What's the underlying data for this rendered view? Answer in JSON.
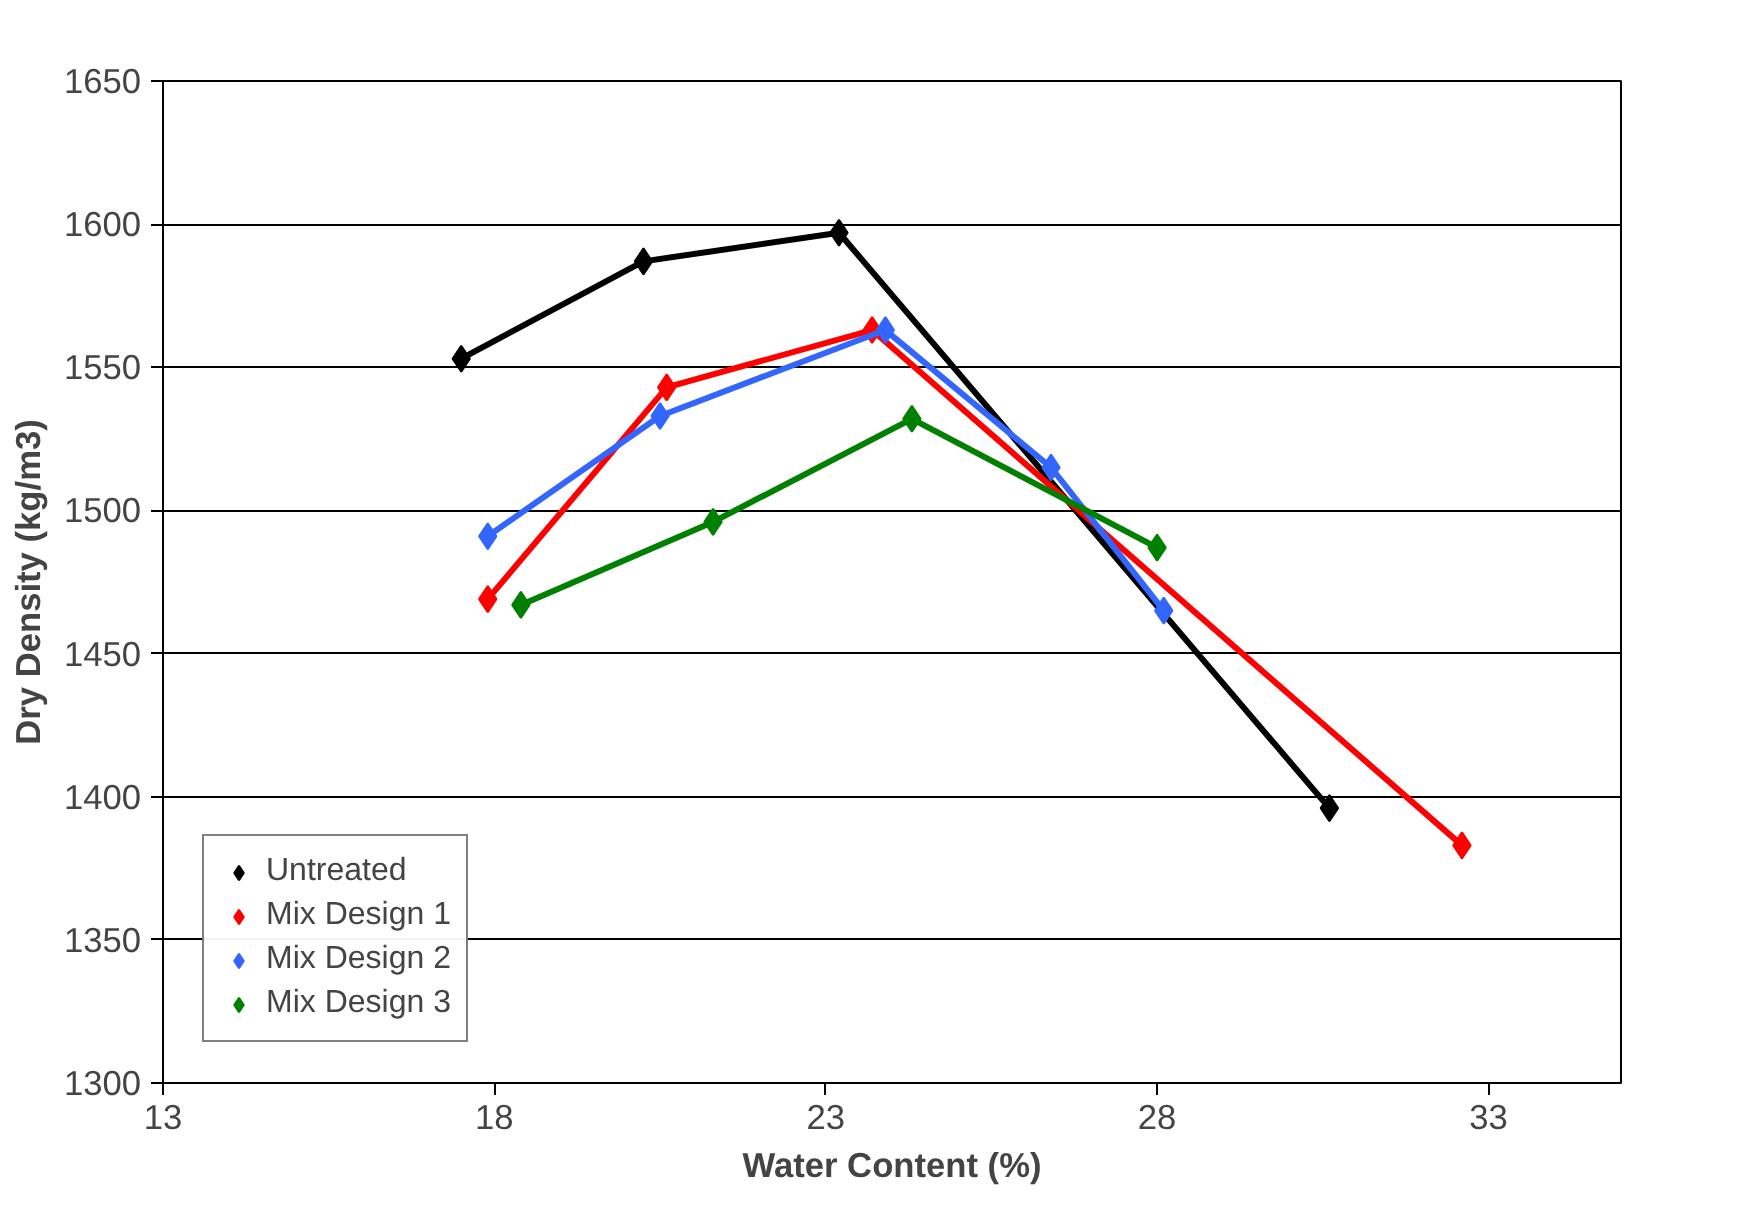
{
  "chart_data": {
    "type": "line",
    "xlabel": "Water Content (%)",
    "ylabel": "Dry Density (kg/m3)",
    "xlim": [
      13,
      35
    ],
    "xticks": [
      13,
      18,
      23,
      28,
      33
    ],
    "ylim": [
      1300,
      1650
    ],
    "yticks": [
      1300,
      1350,
      1400,
      1450,
      1500,
      1550,
      1600,
      1650
    ],
    "grid": "y",
    "legend": "bottom left",
    "marker": "diamond",
    "line_style": "solid",
    "series": [
      {
        "name": "Untreated",
        "color": "#000000",
        "x": [
          17.5,
          20.25,
          23.2,
          30.6
        ],
        "values": [
          1553,
          1587,
          1597,
          1396
        ]
      },
      {
        "name": "Mix Design 1",
        "color": "#ff0000",
        "x": [
          17.9,
          20.6,
          23.7,
          32.6
        ],
        "values": [
          1469,
          1543,
          1563,
          1383
        ]
      },
      {
        "name": "Mix Design 2",
        "color": "#3366ff",
        "x": [
          17.9,
          20.5,
          23.9,
          26.4,
          28.1
        ],
        "values": [
          1491,
          1533,
          1563,
          1515,
          1465
        ]
      },
      {
        "name": "Mix Design 3",
        "color": "#008000",
        "x": [
          18.4,
          21.3,
          24.3,
          28.0
        ],
        "values": [
          1467,
          1496,
          1532,
          1487
        ]
      }
    ]
  }
}
